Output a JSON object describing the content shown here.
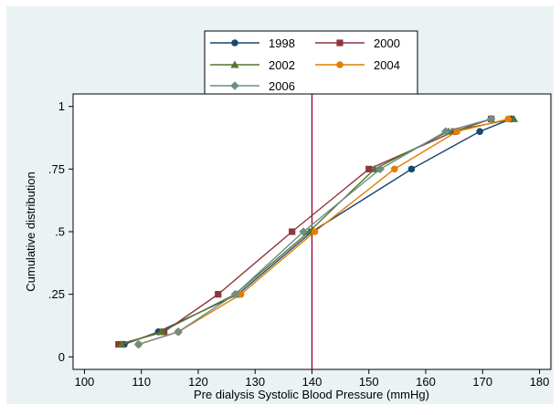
{
  "chart_data": {
    "type": "line",
    "title": "",
    "xlabel": "Pre dialysis Systolic Blood Pressure (mmHg)",
    "ylabel": "Cumulative distribution",
    "xlim": [
      98,
      182
    ],
    "ylim": [
      -0.05,
      1.05
    ],
    "xticks": [
      100,
      110,
      120,
      130,
      140,
      150,
      160,
      170,
      180
    ],
    "yticks": [
      {
        "value": 0,
        "label": "0"
      },
      {
        "value": 0.25,
        "label": ".25"
      },
      {
        "value": 0.5,
        "label": ".5"
      },
      {
        "value": 0.75,
        "label": ".75"
      },
      {
        "value": 1,
        "label": "1"
      }
    ],
    "reference_line": {
      "x": 140,
      "color": "#990033"
    },
    "grid": false,
    "legend_position": "top-center",
    "series": [
      {
        "name": "1998",
        "color": "#1a476f",
        "marker": "circle",
        "points": [
          [
            107,
            0.05
          ],
          [
            113,
            0.1
          ],
          [
            127,
            0.25
          ],
          [
            140,
            0.5
          ],
          [
            157.5,
            0.75
          ],
          [
            169.5,
            0.9
          ],
          [
            175,
            0.95
          ]
        ]
      },
      {
        "name": "2000",
        "color": "#90353b",
        "marker": "square",
        "points": [
          [
            106,
            0.05
          ],
          [
            114,
            0.1
          ],
          [
            123.5,
            0.25
          ],
          [
            136.5,
            0.5
          ],
          [
            150,
            0.75
          ],
          [
            165,
            0.9
          ],
          [
            171.5,
            0.95
          ]
        ]
      },
      {
        "name": "2002",
        "color": "#55752f",
        "marker": "triangle",
        "points": [
          [
            106.5,
            0.05
          ],
          [
            113.5,
            0.1
          ],
          [
            126.5,
            0.25
          ],
          [
            139.5,
            0.5
          ],
          [
            151,
            0.75
          ],
          [
            164,
            0.9
          ],
          [
            175.5,
            0.95
          ]
        ]
      },
      {
        "name": "2004",
        "color": "#e37e00",
        "marker": "circle",
        "points": [
          [
            109.5,
            0.05
          ],
          [
            116.5,
            0.1
          ],
          [
            127.5,
            0.25
          ],
          [
            140.5,
            0.5
          ],
          [
            154.5,
            0.75
          ],
          [
            165.5,
            0.9
          ],
          [
            174.5,
            0.95
          ]
        ]
      },
      {
        "name": "2006",
        "color": "#6e8e84",
        "marker": "diamond",
        "points": [
          [
            109.5,
            0.05
          ],
          [
            116.5,
            0.1
          ],
          [
            126.5,
            0.25
          ],
          [
            138.5,
            0.5
          ],
          [
            152,
            0.75
          ],
          [
            163.5,
            0.9
          ],
          [
            171.5,
            0.95
          ]
        ]
      }
    ]
  }
}
